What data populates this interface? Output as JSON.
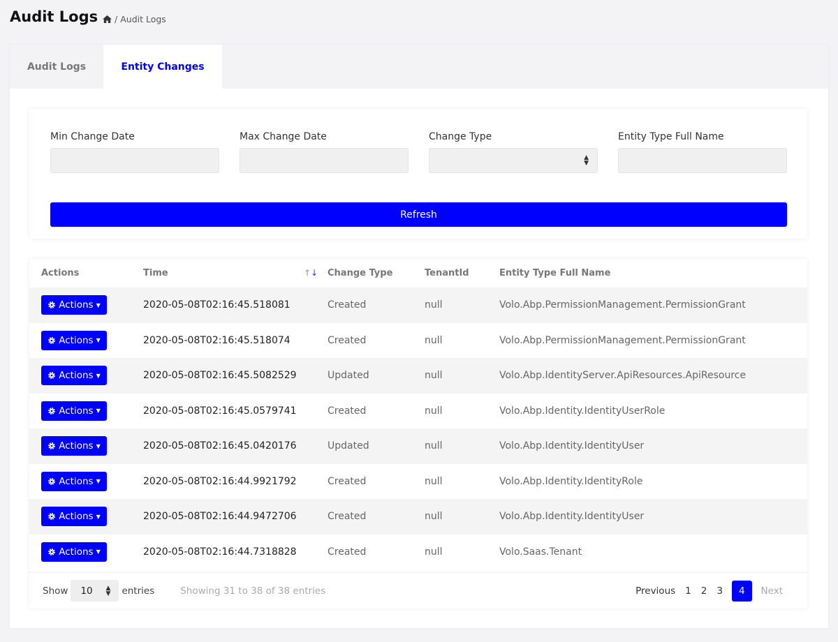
{
  "header": {
    "title": "Audit Logs",
    "breadcrumb": {
      "home_icon": "home-icon",
      "current": "Audit Logs"
    }
  },
  "tabs": [
    {
      "label": "Audit Logs",
      "active": false
    },
    {
      "label": "Entity Changes",
      "active": true
    }
  ],
  "filters": {
    "min_date_label": "Min Change Date",
    "min_date_value": "",
    "max_date_label": "Max Change Date",
    "max_date_value": "",
    "change_type_label": "Change Type",
    "change_type_value": "",
    "entity_label": "Entity Type Full Name",
    "entity_value": "",
    "refresh_label": "Refresh"
  },
  "table": {
    "columns": [
      "Actions",
      "Time",
      "Change Type",
      "TenantId",
      "Entity Type Full Name"
    ],
    "action_label": "Actions",
    "rows": [
      {
        "time": "2020-05-08T02:16:45.518081",
        "type": "Created",
        "tenant": "null",
        "entity": "Volo.Abp.PermissionManagement.PermissionGrant"
      },
      {
        "time": "2020-05-08T02:16:45.518074",
        "type": "Created",
        "tenant": "null",
        "entity": "Volo.Abp.PermissionManagement.PermissionGrant"
      },
      {
        "time": "2020-05-08T02:16:45.5082529",
        "type": "Updated",
        "tenant": "null",
        "entity": "Volo.Abp.IdentityServer.ApiResources.ApiResource"
      },
      {
        "time": "2020-05-08T02:16:45.0579741",
        "type": "Created",
        "tenant": "null",
        "entity": "Volo.Abp.Identity.IdentityUserRole"
      },
      {
        "time": "2020-05-08T02:16:45.0420176",
        "type": "Updated",
        "tenant": "null",
        "entity": "Volo.Abp.Identity.IdentityUser"
      },
      {
        "time": "2020-05-08T02:16:44.9921792",
        "type": "Created",
        "tenant": "null",
        "entity": "Volo.Abp.Identity.IdentityRole"
      },
      {
        "time": "2020-05-08T02:16:44.9472706",
        "type": "Created",
        "tenant": "null",
        "entity": "Volo.Abp.Identity.IdentityUser"
      },
      {
        "time": "2020-05-08T02:16:44.7318828",
        "type": "Created",
        "tenant": "null",
        "entity": "Volo.Saas.Tenant"
      }
    ]
  },
  "footer": {
    "show": "Show",
    "length": "10",
    "entries": "entries",
    "info": "Showing 31 to 38 of 38 entries",
    "previous": "Previous",
    "pages": [
      "1",
      "2",
      "3",
      "4"
    ],
    "current_page": "4",
    "next": "Next"
  },
  "colors": {
    "accent": "#0000ff",
    "background": "#f3f3f6"
  }
}
